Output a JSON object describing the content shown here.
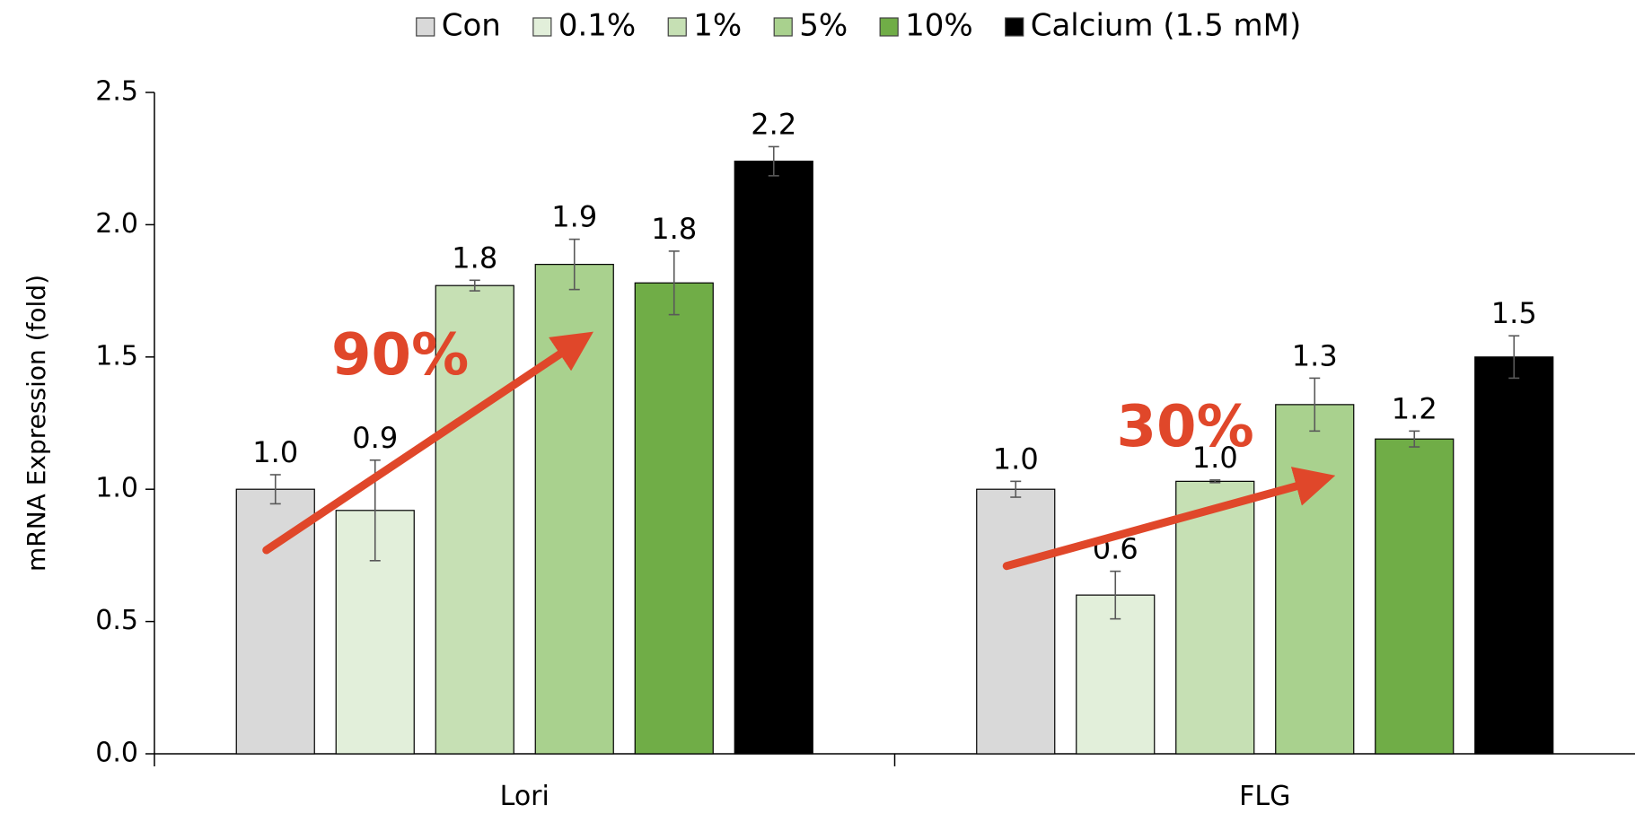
{
  "chart_data": {
    "type": "bar",
    "title": "",
    "xlabel": "",
    "ylabel": "mRNA Expression (fold)",
    "ylim": [
      0,
      2.5
    ],
    "yticks": [
      "0.0",
      "0.5",
      "1.0",
      "1.5",
      "2.0",
      "2.5"
    ],
    "grid": false,
    "legend_position": "top",
    "categories": [
      "Lori",
      "FLG"
    ],
    "series": [
      {
        "name": "Con",
        "color": "#d9d9d9",
        "values": [
          1.0,
          1.0
        ],
        "errors": [
          0.055,
          0.03
        ],
        "labels": [
          "1.0",
          "1.0"
        ]
      },
      {
        "name": "0.1%",
        "color": "#e2efda",
        "values": [
          0.92,
          0.6
        ],
        "errors": [
          0.19,
          0.09
        ],
        "labels": [
          "0.9",
          "0.6"
        ]
      },
      {
        "name": "1%",
        "color": "#c6e0b4",
        "values": [
          1.77,
          1.03
        ],
        "errors": [
          0.02,
          0.005
        ],
        "labels": [
          "1.8",
          "1.0"
        ]
      },
      {
        "name": "5%",
        "color": "#a9d18e",
        "values": [
          1.85,
          1.32
        ],
        "errors": [
          0.095,
          0.1
        ],
        "labels": [
          "1.9",
          "1.3"
        ]
      },
      {
        "name": "10%",
        "color": "#70ad47",
        "values": [
          1.78,
          1.19
        ],
        "errors": [
          0.12,
          0.03
        ],
        "labels": [
          "1.8",
          "1.2"
        ]
      },
      {
        "name": "Calcium (1.5 mM)",
        "color": "#000000",
        "values": [
          2.24,
          1.5
        ],
        "errors": [
          0.055,
          0.08
        ],
        "labels": [
          "2.2",
          "1.5"
        ]
      }
    ],
    "annotations": [
      {
        "text": "90%",
        "color": "#e0472a",
        "category": "Lori",
        "from": {
          "series": 0,
          "value": 0.77
        },
        "to": {
          "series": 3,
          "value": 1.57
        }
      },
      {
        "text": "30%",
        "color": "#e0472a",
        "category": "FLG",
        "from": {
          "series": 0,
          "value": 0.71
        },
        "to": {
          "series": 3,
          "value": 1.04
        }
      }
    ]
  }
}
